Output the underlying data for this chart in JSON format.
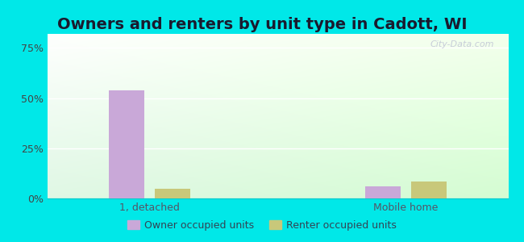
{
  "title": "Owners and renters by unit type in Cadott, WI",
  "categories": [
    "1, detached",
    "Mobile home"
  ],
  "owner_values": [
    54.0,
    6.0
  ],
  "renter_values": [
    5.0,
    8.5
  ],
  "owner_color": "#c9a8d8",
  "renter_color": "#c8c87a",
  "yticks": [
    0,
    25,
    50,
    75
  ],
  "ytick_labels": [
    "0%",
    "25%",
    "50%",
    "75%"
  ],
  "ylim": [
    0,
    82
  ],
  "bar_width": 0.28,
  "group_positions": [
    1.0,
    3.0
  ],
  "background_color": "#00e8e8",
  "legend_owner": "Owner occupied units",
  "legend_renter": "Renter occupied units",
  "watermark": "City-Data.com",
  "title_fontsize": 14,
  "axis_fontsize": 9,
  "legend_fontsize": 9
}
